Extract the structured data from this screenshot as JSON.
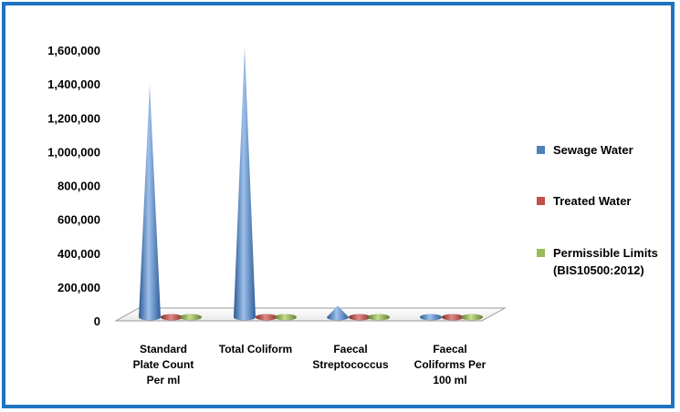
{
  "chart_data": {
    "type": "bar",
    "shape": "cone",
    "categories": [
      [
        "Standard",
        "Plate Count",
        "Per ml"
      ],
      [
        "Total Coliform"
      ],
      [
        "Faecal",
        "Streptococcus"
      ],
      [
        "Faecal",
        "Coliforms Per",
        "100 ml"
      ]
    ],
    "series": [
      {
        "name": "Sewage Water",
        "color": "#4f81bd",
        "values": [
          1400000,
          1620000,
          90000,
          20000
        ]
      },
      {
        "name": "Treated Water",
        "color": "#c0504d",
        "values": [
          2,
          1,
          0,
          0
        ]
      },
      {
        "name": "Permissible Limits (BIS10500:2012)",
        "color": "#9bbb59",
        "values": [
          0,
          0,
          0,
          0
        ]
      }
    ],
    "legend_labels": [
      [
        "Sewage Water"
      ],
      [
        "Treated Water"
      ],
      [
        "Permissible Limits",
        "(BIS10500:2012)"
      ]
    ],
    "y_ticks": [
      "0",
      "200,000",
      "400,000",
      "600,000",
      "800,000",
      "1,000,000",
      "1,200,000",
      "1,400,000",
      "1,600,000"
    ],
    "ylim": [
      0,
      1600000
    ],
    "legend_position": "right",
    "grid": false
  }
}
